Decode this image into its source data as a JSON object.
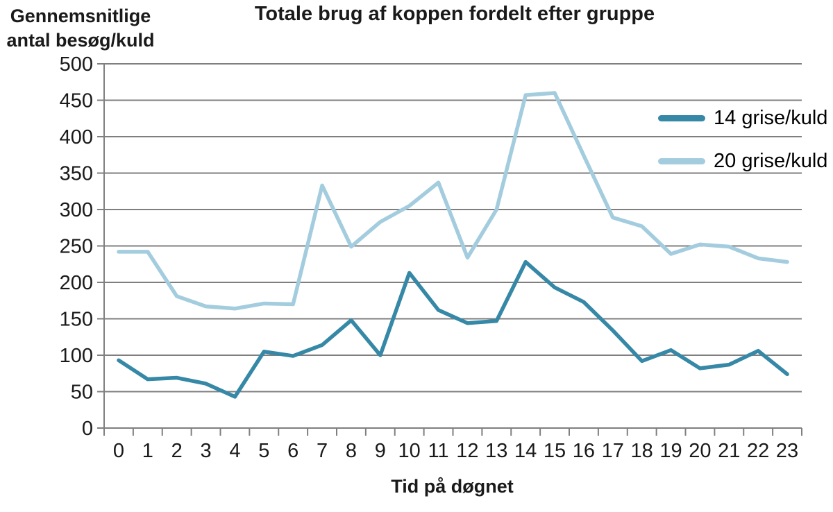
{
  "chart_data": {
    "type": "line",
    "title": "Totale brug af koppen fordelt efter gruppe",
    "ylabel": "Gennemsnitlige antal besøg/kuld",
    "ylabel_lines": [
      "Gennemsnitlige",
      "antal besøg/kuld"
    ],
    "xlabel": "Tid på døgnet",
    "x": [
      0,
      1,
      2,
      3,
      4,
      5,
      6,
      7,
      8,
      9,
      10,
      11,
      12,
      13,
      14,
      15,
      16,
      17,
      18,
      19,
      20,
      21,
      22,
      23
    ],
    "series": [
      {
        "name": "14 grise/kuld",
        "color": "#3688A7",
        "values": [
          93,
          67,
          69,
          61,
          43,
          105,
          99,
          114,
          148,
          100,
          213,
          162,
          144,
          147,
          228,
          193,
          173,
          134,
          92,
          107,
          82,
          87,
          106,
          74
        ]
      },
      {
        "name": "20 grise/kuld",
        "color": "#A3CDDE",
        "values": [
          242,
          242,
          181,
          167,
          164,
          171,
          170,
          333,
          249,
          283,
          305,
          337,
          234,
          300,
          457,
          460,
          374,
          289,
          277,
          239,
          252,
          249,
          233,
          228
        ]
      }
    ],
    "ylim": [
      0,
      500
    ],
    "ytick_step": 50,
    "grid": true,
    "legend_position": "right-top",
    "colors": {
      "grid": "#7F7F7F",
      "axis": "#7F7F7F",
      "text": "#1A1A1A"
    }
  }
}
